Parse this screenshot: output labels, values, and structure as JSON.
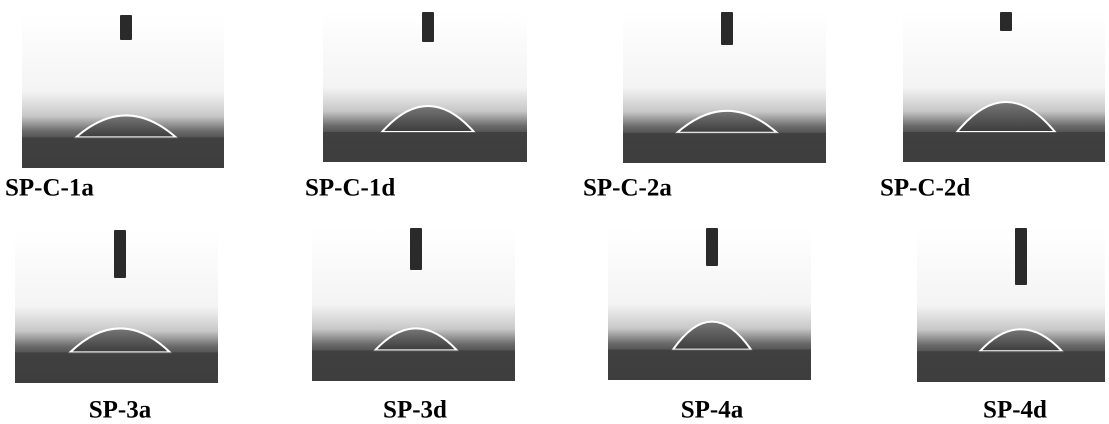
{
  "labels": [
    "SP-C-1a",
    "SP-C-1d",
    "SP-C-2a",
    "SP-C-2d",
    "SP-3a",
    "SP-3d",
    "SP-4a",
    "SP-4d"
  ]
}
